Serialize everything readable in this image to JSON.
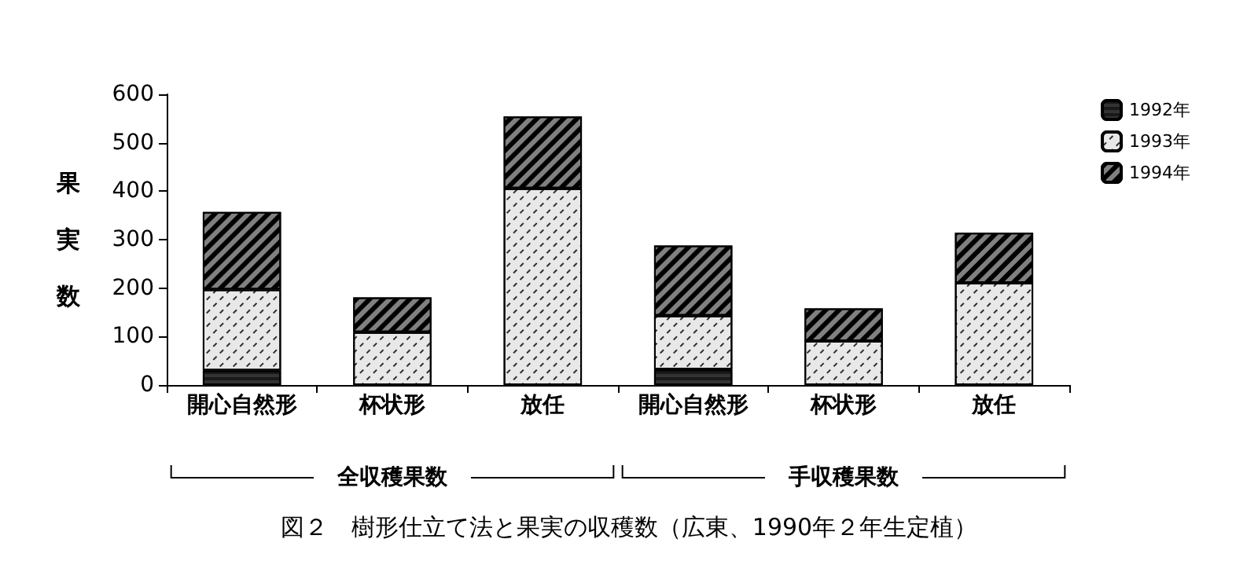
{
  "chart_data": {
    "type": "bar",
    "stacked": true,
    "title": "図２　樹形仕立て法と果実の収穫数（広東、1990年２年生定植）",
    "ylabel": "果実数",
    "categories": [
      "開心自然形",
      "杯状形",
      "放任",
      "開心自然形",
      "杯状形",
      "放任"
    ],
    "series": [
      {
        "name": "1992年",
        "color": "#333333",
        "values": [
          30,
          null,
          null,
          32,
          null,
          null
        ]
      },
      {
        "name": "1993年",
        "color": "#e8e8e8",
        "values": [
          167,
          109,
          406,
          111,
          91,
          211
        ]
      },
      {
        "name": "1994年",
        "color": "#808080",
        "values": [
          160,
          72,
          148,
          145,
          67,
          103
        ]
      }
    ],
    "ylim": [
      0,
      600
    ],
    "yticks": [
      0,
      100,
      200,
      300,
      400,
      500,
      600
    ],
    "annotations": [
      "全収穫果数",
      "手収穫果数"
    ],
    "legend": "top right",
    "grid": false
  }
}
